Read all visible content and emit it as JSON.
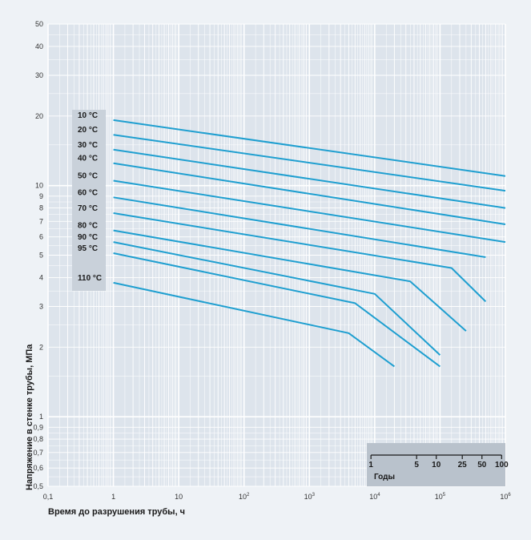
{
  "chart_data": {
    "type": "line",
    "x_scale": "log",
    "y_scale": "log",
    "xlim": [
      0.1,
      1000000
    ],
    "ylim": [
      0.5,
      50
    ],
    "xlabel": "Время до разрушения трубы, ч",
    "ylabel": "Напряжение в стенке трубы, МПа",
    "grid": true,
    "x_ticks": [
      {
        "value": 0.1,
        "base": "0,1",
        "sup": ""
      },
      {
        "value": 1,
        "base": "1",
        "sup": ""
      },
      {
        "value": 10,
        "base": "10",
        "sup": ""
      },
      {
        "value": 100,
        "base": "10",
        "sup": "2"
      },
      {
        "value": 1000,
        "base": "10",
        "sup": "3"
      },
      {
        "value": 10000,
        "base": "10",
        "sup": "4"
      },
      {
        "value": 100000,
        "base": "10",
        "sup": "5"
      },
      {
        "value": 1000000,
        "base": "10",
        "sup": "6"
      }
    ],
    "y_ticks": [
      {
        "value": 0.5,
        "label": "0,5"
      },
      {
        "value": 0.6,
        "label": "0,6"
      },
      {
        "value": 0.7,
        "label": "0,7"
      },
      {
        "value": 0.8,
        "label": "0,8"
      },
      {
        "value": 0.9,
        "label": "0,9"
      },
      {
        "value": 1,
        "label": "1"
      },
      {
        "value": 2,
        "label": "2"
      },
      {
        "value": 3,
        "label": "3"
      },
      {
        "value": 4,
        "label": "4"
      },
      {
        "value": 5,
        "label": "5"
      },
      {
        "value": 6,
        "label": "6"
      },
      {
        "value": 7,
        "label": "7"
      },
      {
        "value": 8,
        "label": "8"
      },
      {
        "value": 9,
        "label": "9"
      },
      {
        "value": 10,
        "label": "10"
      },
      {
        "value": 20,
        "label": "20"
      },
      {
        "value": 30,
        "label": "30"
      },
      {
        "value": 40,
        "label": "40"
      },
      {
        "value": 50,
        "label": "50"
      }
    ],
    "series": [
      {
        "name": "10 °C",
        "points": [
          [
            1,
            19.2
          ],
          [
            1000000,
            11.0
          ]
        ]
      },
      {
        "name": "20 °C",
        "points": [
          [
            1,
            16.6
          ],
          [
            1000000,
            9.5
          ]
        ]
      },
      {
        "name": "30 °C",
        "points": [
          [
            1,
            14.3
          ],
          [
            1000000,
            8.0
          ]
        ]
      },
      {
        "name": "40 °C",
        "points": [
          [
            1,
            12.5
          ],
          [
            1000000,
            6.8
          ]
        ]
      },
      {
        "name": "50 °C",
        "points": [
          [
            1,
            10.5
          ],
          [
            1000000,
            5.7
          ]
        ]
      },
      {
        "name": "60 °C",
        "points": [
          [
            1,
            8.9
          ],
          [
            500000,
            4.9
          ]
        ]
      },
      {
        "name": "70 °C",
        "points": [
          [
            1,
            7.6
          ],
          [
            150000,
            4.4
          ],
          [
            500000,
            3.15
          ]
        ]
      },
      {
        "name": "80 °C",
        "points": [
          [
            1,
            6.4
          ],
          [
            35000,
            3.85
          ],
          [
            250000,
            2.35
          ]
        ]
      },
      {
        "name": "90 °C",
        "points": [
          [
            1,
            5.7
          ],
          [
            10000,
            3.4
          ],
          [
            100000,
            1.85
          ]
        ]
      },
      {
        "name": "95 °C",
        "points": [
          [
            1,
            5.1
          ],
          [
            5000,
            3.1
          ],
          [
            100000,
            1.65
          ]
        ]
      },
      {
        "name": "110 °C",
        "points": [
          [
            1,
            3.8
          ],
          [
            4000,
            2.3
          ],
          [
            20000,
            1.65
          ]
        ]
      }
    ],
    "colors": {
      "series": "#1f9fd0",
      "grid": "#ffffff",
      "background": "#dde4ec",
      "label_box": "#c9d1da",
      "years_box": "#b9c2cc"
    },
    "years_axis": {
      "title": "Годы",
      "ticks": [
        {
          "label": "1",
          "hours": 8760
        },
        {
          "label": "5",
          "hours": 43800
        },
        {
          "label": "10",
          "hours": 87600
        },
        {
          "label": "25",
          "hours": 219000
        },
        {
          "label": "50",
          "hours": 438000
        },
        {
          "label": "100",
          "hours": 876000
        }
      ]
    }
  }
}
